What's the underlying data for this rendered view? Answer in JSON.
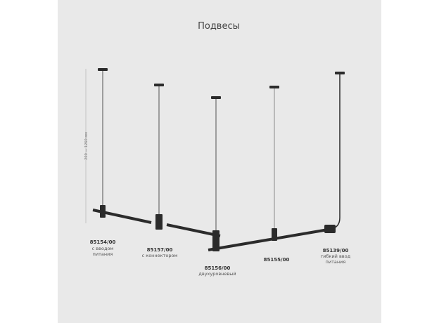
{
  "title": "Подвесы",
  "dimension_label": "200 — 1260 мм",
  "products": [
    {
      "code": "85154/00",
      "desc": [
        "с вводом",
        "питания"
      ]
    },
    {
      "code": "85157/00",
      "desc": [
        "с коннектором"
      ]
    },
    {
      "code": "85156/00",
      "desc": [
        "двухуровневый"
      ]
    },
    {
      "code": "85155/00",
      "desc": []
    },
    {
      "code": "85139/00",
      "desc": [
        "гибкий ввод",
        "питания"
      ]
    }
  ],
  "colors": {
    "background": "#e9e9e9",
    "fixture": "#2b2b2b"
  }
}
